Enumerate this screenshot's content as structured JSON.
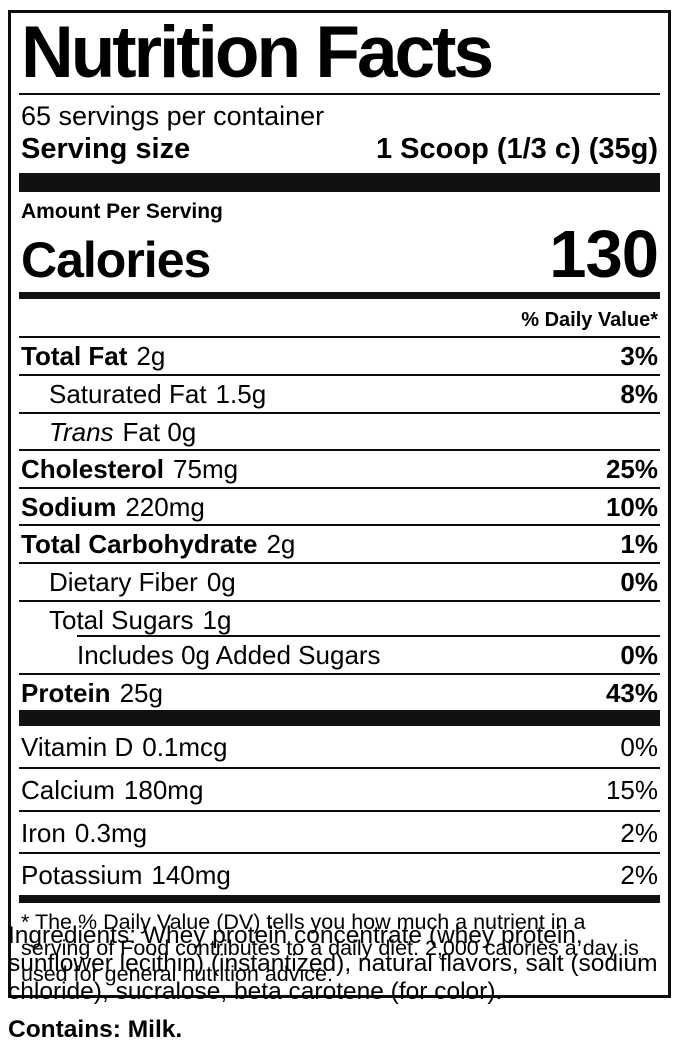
{
  "nutrition_label": {
    "title": "Nutrition Facts",
    "servings_per_container": "65 servings per container",
    "serving_size": {
      "label": "Serving size",
      "value": "1 Scoop (1/3 c) (35g)"
    },
    "amount_per_serving": "Amount Per Serving",
    "calories": {
      "label": "Calories",
      "value": "130"
    },
    "daily_value_header": "% Daily Value*",
    "nutrients": [
      {
        "name": "Total Fat",
        "amount": "2g",
        "percent": "3%"
      },
      {
        "name": "Saturated Fat",
        "amount": "1.5g",
        "percent": "8%"
      },
      {
        "name": "Trans",
        "amount": "Fat  0g",
        "percent": ""
      },
      {
        "name": "Cholesterol",
        "amount": "75mg",
        "percent": "25%"
      },
      {
        "name": "Sodium",
        "amount": "220mg",
        "percent": "10%"
      },
      {
        "name": "Total Carbohydrate",
        "amount": "2g",
        "percent": "1%"
      },
      {
        "name": "Dietary Fiber",
        "amount": "0g",
        "percent": "0%"
      },
      {
        "name": "Total Sugars",
        "amount": "1g",
        "percent": ""
      },
      {
        "name": "Includes 0g Added Sugars",
        "amount": "",
        "percent": "0%"
      },
      {
        "name": "Protein",
        "amount": "25g",
        "percent": "43%"
      }
    ],
    "micronutrients": [
      {
        "name": "Vitamin D",
        "amount": "0.1mcg",
        "percent": "0%"
      },
      {
        "name": "Calcium",
        "amount": "180mg",
        "percent": "15%"
      },
      {
        "name": "Iron",
        "amount": "0.3mg",
        "percent": "2%"
      },
      {
        "name": "Potassium",
        "amount": "140mg",
        "percent": "2%"
      }
    ],
    "footnote": "* The % Daily Value (DV) tells you how much a nutrient in a serving of Food contributes to a daily diet. 2,000 calories a day is used for general nutrition advice."
  },
  "ingredients_text": "Ingredients: Whey protein concentrate (whey protein, sunflower lecithin) (instantized), natural flavors, salt (sodium chloride), sucralose, beta carotene (for color).",
  "contains_text": "Contains: Milk."
}
